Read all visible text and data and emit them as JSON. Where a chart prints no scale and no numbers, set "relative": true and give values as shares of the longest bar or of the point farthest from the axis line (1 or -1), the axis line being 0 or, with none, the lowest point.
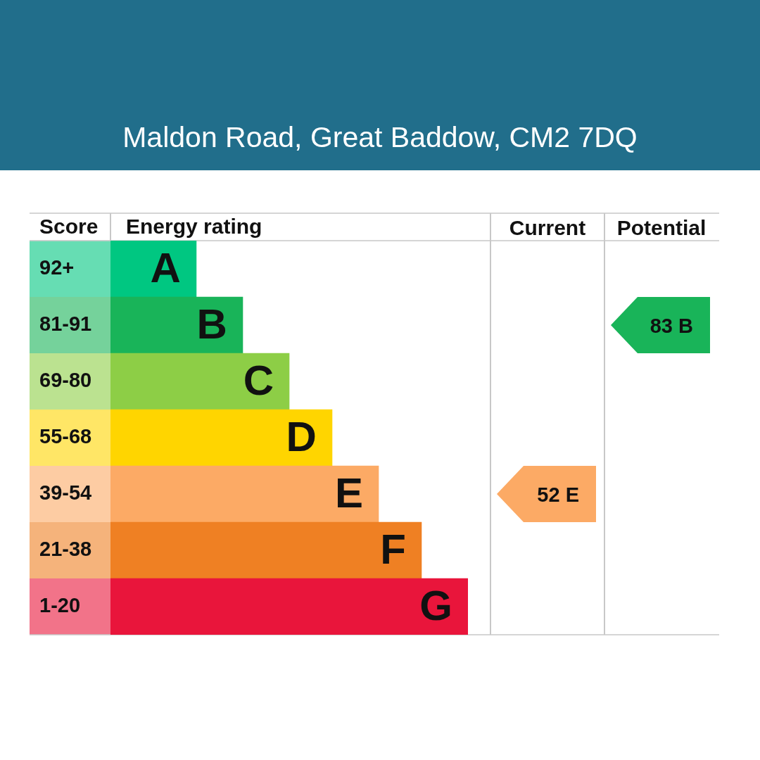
{
  "chart_data": {
    "type": "bar",
    "title": "Maldon Road, Great Baddow, CM2 7DQ",
    "ylabel": "Score",
    "orientation": "horizontal",
    "relative": true,
    "categories": [
      "92+",
      "81-91",
      "69-80",
      "55-68",
      "39-54",
      "21-38",
      "1-20"
    ],
    "series": [
      {
        "name": "Energy rating",
        "colors": [
          "#00c781",
          "#19b459",
          "#8dce46",
          "#ffd500",
          "#fcaa65",
          "#ef8023",
          "#e9153b"
        ],
        "values": [
          0.24,
          0.37,
          0.5,
          0.62,
          0.75,
          0.87,
          1
        ]
      }
    ],
    "annotations": [
      {
        "text": "A",
        "x": 0.24,
        "y": "92+"
      },
      {
        "text": "B",
        "x": 0.37,
        "y": "81-91"
      },
      {
        "text": "C",
        "x": 0.5,
        "y": "69-80"
      },
      {
        "text": "D",
        "x": 0.62,
        "y": "55-68"
      },
      {
        "text": "E",
        "x": 0.75,
        "y": "39-54"
      },
      {
        "text": "F",
        "x": 0.87,
        "y": "21-38"
      },
      {
        "text": "G",
        "x": 1,
        "y": "1-20"
      },
      "Current",
      "Potential",
      "52 E",
      "83 B"
    ]
  }
}
